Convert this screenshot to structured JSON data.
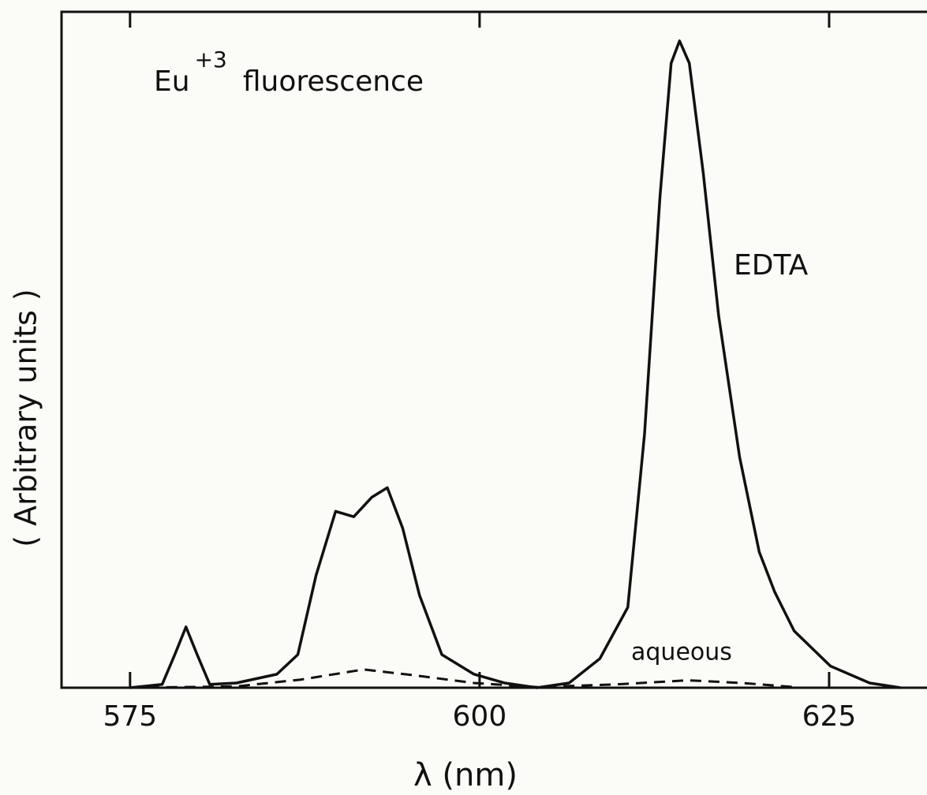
{
  "chart_data": {
    "type": "line",
    "title": [
      "Eu",
      "+3",
      "fluorescence"
    ],
    "xlabel": "λ (nm)",
    "ylabel": "( Arbitrary units )",
    "xlim": [
      570.1,
      632
    ],
    "ylim": [
      0,
      100
    ],
    "xticks": [
      575,
      600,
      625
    ],
    "series": [
      {
        "name": "EDTA",
        "color": "#111111",
        "dash": false,
        "x": [
          575,
          577.3,
          578.2,
          579.0,
          579.8,
          580.7,
          582.6,
          585.5,
          587.0,
          588.3,
          589.7,
          591.0,
          592.3,
          593.4,
          594.5,
          595.7,
          597.3,
          599.6,
          601.8,
          604.1,
          606.4,
          608.6,
          610.6,
          611.8,
          612.9,
          613.7,
          614.3,
          615.0,
          616.0,
          617.1,
          618.6,
          620.0,
          621.1,
          622.5,
          625.1,
          627.9,
          630.1
        ],
        "values": [
          0,
          0.5,
          4.9,
          9.0,
          4.9,
          0.5,
          0.7,
          2.0,
          4.9,
          16.6,
          26.1,
          25.3,
          28.2,
          29.6,
          23.6,
          13.7,
          4.9,
          2.0,
          0.7,
          0,
          0.7,
          4.3,
          11.9,
          37.6,
          72.6,
          92.4,
          95.7,
          92.4,
          76.1,
          55.0,
          34.1,
          20.1,
          14.2,
          8.4,
          3.2,
          0.7,
          0
        ]
      },
      {
        "name": "aqueous",
        "color": "#111111",
        "dash": true,
        "x": [
          575,
          582.6,
          587.2,
          591.7,
          595.1,
          599.6,
          604.1,
          609.8,
          614.9,
          618.8,
          622.5
        ],
        "values": [
          0,
          0.2,
          1.2,
          2.7,
          1.9,
          0.7,
          0.1,
          0.5,
          1.1,
          0.7,
          0.1
        ]
      }
    ]
  }
}
